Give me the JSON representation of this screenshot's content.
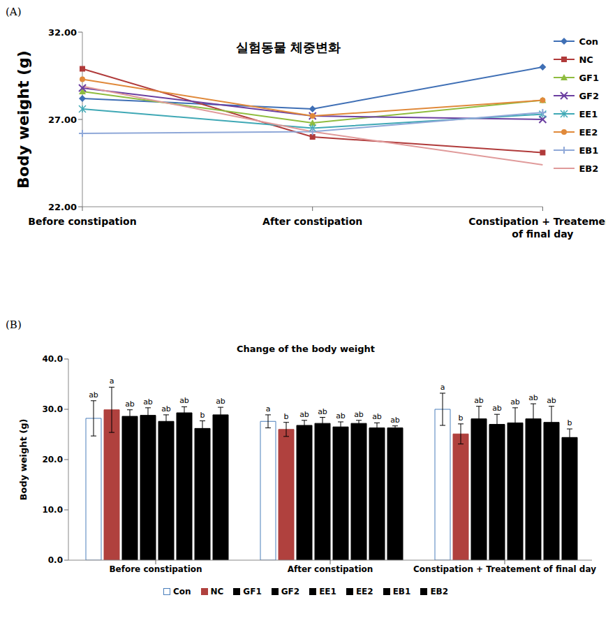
{
  "chart_data": [
    {
      "panel": "(A)",
      "type": "line",
      "title": "실험동물 체중변화",
      "y_label": "Body weight (g)",
      "categories": [
        "Before constipation",
        "After constipation",
        "Constipation + Treatement of final day"
      ],
      "series": [
        {
          "name": "Con",
          "color": "#3f6fb5",
          "marker": "diamond",
          "values": [
            28.2,
            27.6,
            30.0
          ]
        },
        {
          "name": "NC",
          "color": "#b03a3a",
          "marker": "square",
          "values": [
            29.9,
            26.0,
            25.1
          ]
        },
        {
          "name": "GF1",
          "color": "#8fbc3f",
          "marker": "triangle",
          "values": [
            28.6,
            26.8,
            28.1
          ]
        },
        {
          "name": "GF2",
          "color": "#6b3fa0",
          "marker": "x",
          "values": [
            28.8,
            27.2,
            27.0
          ]
        },
        {
          "name": "EE1",
          "color": "#3fa8b5",
          "marker": "star",
          "values": [
            27.6,
            26.5,
            27.3
          ]
        },
        {
          "name": "EE2",
          "color": "#e0893a",
          "marker": "circle",
          "values": [
            29.3,
            27.2,
            28.1
          ]
        },
        {
          "name": "EB1",
          "color": "#8fa8d8",
          "marker": "plus",
          "values": [
            26.2,
            26.3,
            27.4
          ]
        },
        {
          "name": "EB2",
          "color": "#e09a9a",
          "marker": "none",
          "values": [
            28.9,
            26.3,
            24.4
          ]
        }
      ],
      "ylim": [
        22,
        32
      ],
      "yticks": [
        {
          "value": 22,
          "label": "22.00"
        },
        {
          "value": 27,
          "label": "27.00"
        },
        {
          "value": 32,
          "label": "32.00"
        }
      ],
      "grid": false,
      "legend": "right"
    },
    {
      "panel": "(B)",
      "type": "bar",
      "title": "Change of the body weight",
      "y_label": "Body weight (g)",
      "categories": [
        "Before constipation",
        "After constipation",
        "Constipation + Treatement of final day"
      ],
      "series": [
        {
          "name": "Con",
          "color": "#ffffff",
          "values": [
            28.2,
            27.6,
            30.0
          ],
          "errors": [
            3.5,
            1.3,
            3.2
          ],
          "letters": [
            "ab",
            "a",
            "a"
          ]
        },
        {
          "name": "NC",
          "color": "#b0413e",
          "values": [
            29.9,
            26.0,
            25.1
          ],
          "errors": [
            4.5,
            1.4,
            2.0
          ],
          "letters": [
            "a",
            "b",
            "b"
          ]
        },
        {
          "name": "GF1",
          "color": "#000000",
          "values": [
            28.6,
            26.8,
            28.1
          ],
          "errors": [
            1.3,
            1.0,
            2.5
          ],
          "letters": [
            "ab",
            "ab",
            "ab"
          ]
        },
        {
          "name": "GF2",
          "color": "#000000",
          "values": [
            28.8,
            27.2,
            27.0
          ],
          "errors": [
            1.5,
            1.2,
            2.0
          ],
          "letters": [
            "ab",
            "ab",
            "ab"
          ]
        },
        {
          "name": "EE1",
          "color": "#000000",
          "values": [
            27.6,
            26.5,
            27.3
          ],
          "errors": [
            1.3,
            1.0,
            3.0
          ],
          "letters": [
            "ab",
            "ab",
            "ab"
          ]
        },
        {
          "name": "EE2",
          "color": "#000000",
          "values": [
            29.3,
            27.2,
            28.1
          ],
          "errors": [
            1.2,
            0.6,
            3.0
          ],
          "letters": [
            "ab",
            "ab",
            "ab"
          ]
        },
        {
          "name": "EB1",
          "color": "#000000",
          "values": [
            26.2,
            26.3,
            27.4
          ],
          "errors": [
            1.5,
            1.0,
            3.2
          ],
          "letters": [
            "b",
            "ab",
            "ab"
          ]
        },
        {
          "name": "EB2",
          "color": "#000000",
          "values": [
            28.9,
            26.3,
            24.4
          ],
          "errors": [
            1.5,
            0.4,
            1.7
          ],
          "letters": [
            "ab",
            "ab",
            "b"
          ]
        }
      ],
      "ylim": [
        0,
        40
      ],
      "yticks": [
        {
          "value": 0,
          "label": "0.0"
        },
        {
          "value": 10,
          "label": "10.0"
        },
        {
          "value": 20,
          "label": "20.0"
        },
        {
          "value": 30,
          "label": "30.0"
        },
        {
          "value": 40,
          "label": "40.0"
        }
      ],
      "grid": false,
      "legend": "bottom"
    }
  ]
}
